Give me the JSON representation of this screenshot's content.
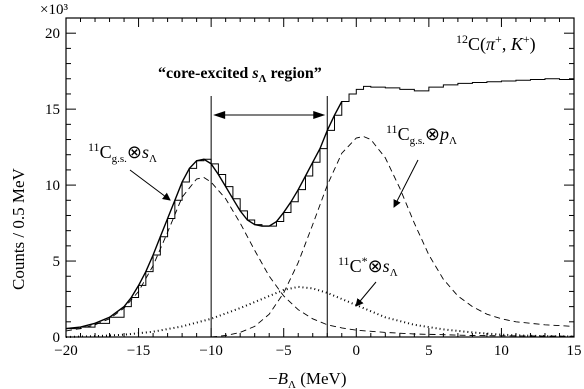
{
  "chart_data": {
    "type": "line",
    "xlabel": "−B_Λ (MeV)",
    "ylabel": "Counts / 0.5 MeV",
    "xlim": [
      -20,
      15
    ],
    "ylim": [
      0,
      21000
    ],
    "x_ticks": [
      "−20",
      "−15",
      "−10",
      "−5",
      "0",
      "5",
      "10",
      "15"
    ],
    "y_ticks": [
      "0",
      "5",
      "10",
      "15",
      "20"
    ],
    "y_multiplier": "×10³",
    "reaction": "¹²C(π⁺, K⁺)",
    "region": {
      "label": "“core-excited s_Λ region”",
      "x_range": [
        -10,
        -2
      ]
    },
    "series": [
      {
        "style": "histogram",
        "x": [
          -20,
          -19,
          -18,
          -17,
          -16,
          -15.5,
          -15,
          -14.5,
          -14,
          -13.5,
          -13,
          -12.5,
          -12,
          -11.5,
          -11,
          -10.5,
          -10,
          -9.5,
          -9,
          -8.5,
          -8,
          -7.5,
          -7,
          -6.5,
          -6,
          -5.5,
          -5,
          -4.5,
          -4,
          -3.5,
          -3,
          -2.5,
          -2,
          -1.5,
          -1,
          -0.5,
          0,
          0.5,
          1,
          2,
          3,
          4,
          5,
          6,
          7,
          8,
          9,
          10,
          11,
          12,
          13,
          14,
          15
        ],
        "y": [
          550,
          650,
          900,
          1300,
          2000,
          2600,
          3400,
          4300,
          5400,
          6600,
          7800,
          9000,
          10200,
          11100,
          11600,
          11700,
          11400,
          10700,
          9900,
          9100,
          8300,
          7700,
          7400,
          7300,
          7300,
          7600,
          8200,
          8900,
          9700,
          10600,
          11500,
          12400,
          13600,
          14600,
          15500,
          16000,
          16300,
          16500,
          16450,
          16400,
          16300,
          16200,
          16450,
          16600,
          16700,
          16750,
          16800,
          16850,
          16900,
          16950,
          17000,
          16950,
          16900
        ]
      },
      {
        "style": "solid",
        "x": [
          -20,
          -19,
          -18,
          -17,
          -16,
          -15.5,
          -15,
          -14.5,
          -14,
          -13.5,
          -13,
          -12.5,
          -12,
          -11.5,
          -11,
          -10.5,
          -10,
          -9.5,
          -9,
          -8.5,
          -8,
          -7.5,
          -7,
          -6.5,
          -6,
          -5.5,
          -5,
          -4.5,
          -4,
          -3.5,
          -3,
          -2.5,
          -2,
          -1.5,
          -1
        ],
        "y": [
          550,
          650,
          900,
          1300,
          2000,
          2600,
          3400,
          4300,
          5400,
          6600,
          7800,
          9000,
          10200,
          11100,
          11600,
          11700,
          11400,
          10700,
          9900,
          9100,
          8300,
          7700,
          7400,
          7300,
          7300,
          7600,
          8200,
          8900,
          9700,
          10600,
          11500,
          12400,
          13600,
          14600,
          15500
        ]
      },
      {
        "name": "¹¹C_g.s.⊗s_Λ",
        "style": "dashed",
        "x": [
          -20,
          -19,
          -18,
          -17,
          -16,
          -15,
          -14,
          -13,
          -12,
          -11,
          -10.5,
          -10,
          -9,
          -8,
          -7,
          -6,
          -5,
          -4,
          -3,
          -2,
          -1,
          0,
          2,
          4,
          6,
          8,
          10,
          15
        ],
        "y": [
          400,
          550,
          800,
          1200,
          1900,
          3000,
          4700,
          6900,
          9200,
          10400,
          10500,
          10200,
          9100,
          7500,
          5700,
          4000,
          2700,
          1800,
          1200,
          800,
          600,
          450,
          300,
          200,
          150,
          100,
          80,
          50
        ]
      },
      {
        "name": "¹¹C_g.s.⊗p_Λ",
        "style": "dashed",
        "x": [
          -10,
          -9,
          -8,
          -7,
          -6,
          -5,
          -4,
          -3,
          -2,
          -1,
          0,
          0.5,
          1,
          2,
          3,
          4,
          5,
          6,
          7,
          8,
          9,
          10,
          11,
          12,
          13,
          14,
          15
        ],
        "y": [
          0,
          100,
          300,
          700,
          1500,
          2900,
          4900,
          7400,
          10000,
          12100,
          13100,
          13200,
          13000,
          11800,
          9800,
          7500,
          5400,
          3800,
          2700,
          2000,
          1500,
          1200,
          1000,
          900,
          800,
          750,
          700
        ]
      },
      {
        "name": "¹¹C*⊗s_Λ",
        "style": "dotted",
        "x": [
          -20,
          -18,
          -16,
          -14,
          -12,
          -10,
          -8,
          -6,
          -5,
          -4,
          -3,
          -2,
          -1,
          0,
          1,
          2,
          4,
          6,
          8,
          10,
          12,
          15
        ],
        "y": [
          0,
          50,
          150,
          350,
          700,
          1200,
          1900,
          2700,
          3100,
          3300,
          3200,
          2900,
          2500,
          2100,
          1700,
          1300,
          800,
          500,
          300,
          150,
          80,
          30
        ]
      }
    ],
    "labels": {
      "gs_s": {
        "core": "C",
        "mass": "11",
        "sub": "g.s.",
        "op": "⊗",
        "state": "s",
        "lam": "Λ"
      },
      "gs_p": {
        "core": "C",
        "mass": "11",
        "sub": "g.s.",
        "op": "⊗",
        "state": "p",
        "lam": "Λ"
      },
      "exc_s": {
        "core": "C",
        "mass": "11",
        "star": "*",
        "op": "⊗",
        "state": "s",
        "lam": "Λ"
      }
    }
  }
}
